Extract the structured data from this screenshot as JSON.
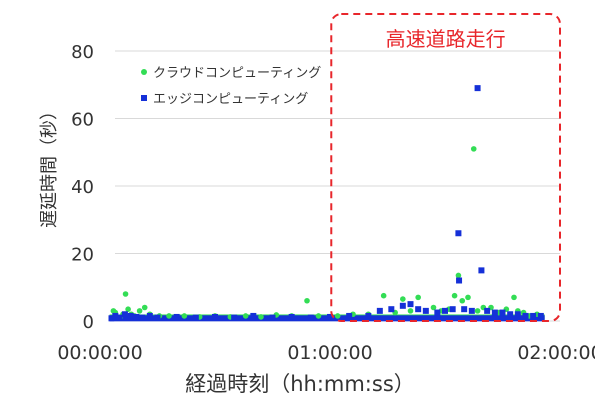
{
  "chart_data": {
    "type": "scatter",
    "title": "",
    "xlabel": "経過時刻（hh:mm:ss）",
    "ylabel": "遅延時間（秒）",
    "x_unit": "hh:mm:ss",
    "xlim": [
      "00:00:00",
      "02:00:00"
    ],
    "ylim": [
      0,
      80
    ],
    "x_ticks": [
      "00:00:00",
      "01:00:00",
      "02:00:00"
    ],
    "y_ticks": [
      "0",
      "20",
      "40",
      "60",
      "80"
    ],
    "grid": "horizontal",
    "legend_position": "top-left",
    "annotation": {
      "text": "高速道路走行",
      "x_start": "01:00:20",
      "x_end": "02:00:00",
      "color": "#e8262b",
      "style": "dashed-rounded-box"
    },
    "series": [
      {
        "name": "クラウドコンピューティング",
        "color": "#33dd55",
        "marker": "circle",
        "points": [
          [
            "00:03:30",
            3.0
          ],
          [
            "00:04:00",
            2.5
          ],
          [
            "00:05:10",
            1.0
          ],
          [
            "00:06:00",
            2.0
          ],
          [
            "00:06:40",
            8.0
          ],
          [
            "00:07:20",
            3.5
          ],
          [
            "00:08:10",
            2.0
          ],
          [
            "00:09:00",
            1.5
          ],
          [
            "00:10:20",
            3.0
          ],
          [
            "00:11:40",
            4.0
          ],
          [
            "00:13:00",
            2.0
          ],
          [
            "00:15:30",
            1.5
          ],
          [
            "00:18:00",
            1.5
          ],
          [
            "00:22:00",
            1.5
          ],
          [
            "00:26:00",
            1.2
          ],
          [
            "00:30:00",
            1.5
          ],
          [
            "00:34:00",
            1.2
          ],
          [
            "00:38:00",
            1.5
          ],
          [
            "00:42:00",
            1.2
          ],
          [
            "00:46:00",
            1.8
          ],
          [
            "00:50:00",
            1.5
          ],
          [
            "00:54:00",
            6.0
          ],
          [
            "00:57:00",
            1.5
          ],
          [
            "01:02:00",
            1.5
          ],
          [
            "01:06:00",
            2.0
          ],
          [
            "01:10:00",
            2.0
          ],
          [
            "01:14:00",
            7.5
          ],
          [
            "01:17:00",
            2.5
          ],
          [
            "01:19:00",
            6.5
          ],
          [
            "01:21:00",
            3.0
          ],
          [
            "01:23:00",
            7.0
          ],
          [
            "01:25:00",
            3.0
          ],
          [
            "01:27:00",
            4.0
          ],
          [
            "01:29:00",
            3.0
          ],
          [
            "01:31:00",
            3.5
          ],
          [
            "01:32:30",
            7.5
          ],
          [
            "01:33:30",
            13.5
          ],
          [
            "01:34:30",
            6.0
          ],
          [
            "01:36:00",
            7.0
          ],
          [
            "01:37:30",
            51.0
          ],
          [
            "01:38:30",
            3.0
          ],
          [
            "01:40:00",
            4.0
          ],
          [
            "01:42:00",
            4.0
          ],
          [
            "01:44:00",
            2.5
          ],
          [
            "01:46:00",
            3.5
          ],
          [
            "01:48:00",
            7.0
          ],
          [
            "01:49:00",
            3.0
          ],
          [
            "01:50:30",
            2.5
          ],
          [
            "01:52:00",
            1.5
          ],
          [
            "01:54:00",
            2.0
          ]
        ]
      },
      {
        "name": "エッジコンピューティング",
        "color": "#1530d8",
        "marker": "square",
        "points": [
          [
            "00:03:00",
            0.8
          ],
          [
            "00:04:00",
            1.5
          ],
          [
            "00:05:00",
            1.0
          ],
          [
            "00:06:30",
            2.0
          ],
          [
            "00:08:00",
            1.5
          ],
          [
            "00:09:30",
            1.2
          ],
          [
            "00:11:00",
            1.0
          ],
          [
            "00:13:00",
            1.5
          ],
          [
            "00:15:00",
            1.0
          ],
          [
            "00:20:00",
            1.2
          ],
          [
            "00:25:00",
            1.0
          ],
          [
            "00:30:00",
            1.2
          ],
          [
            "00:35:00",
            1.0
          ],
          [
            "00:40:00",
            1.5
          ],
          [
            "00:45:00",
            1.0
          ],
          [
            "00:50:00",
            1.2
          ],
          [
            "00:55:00",
            1.0
          ],
          [
            "01:00:00",
            1.2
          ],
          [
            "01:05:00",
            1.5
          ],
          [
            "01:10:00",
            1.5
          ],
          [
            "01:13:00",
            3.0
          ],
          [
            "01:16:00",
            3.5
          ],
          [
            "01:19:00",
            4.5
          ],
          [
            "01:21:00",
            5.0
          ],
          [
            "01:23:00",
            3.5
          ],
          [
            "01:25:00",
            3.0
          ],
          [
            "01:28:00",
            2.5
          ],
          [
            "01:30:00",
            3.0
          ],
          [
            "01:32:00",
            3.5
          ],
          [
            "01:33:30",
            26.0
          ],
          [
            "01:33:40",
            12.0
          ],
          [
            "01:35:00",
            3.5
          ],
          [
            "01:37:00",
            3.0
          ],
          [
            "01:38:30",
            69.0
          ],
          [
            "01:39:30",
            15.0
          ],
          [
            "01:41:00",
            3.0
          ],
          [
            "01:43:00",
            2.5
          ],
          [
            "01:45:00",
            2.5
          ],
          [
            "01:47:00",
            2.0
          ],
          [
            "01:49:00",
            2.0
          ],
          [
            "01:51:00",
            1.5
          ],
          [
            "01:53:00",
            1.5
          ],
          [
            "01:55:00",
            1.5
          ]
        ]
      }
    ]
  }
}
